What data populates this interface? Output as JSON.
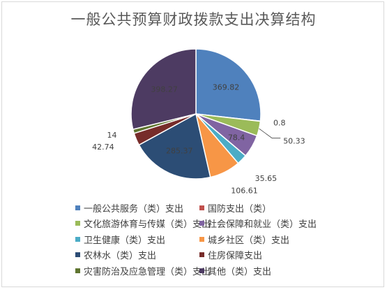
{
  "chart_data": {
    "type": "pie",
    "title": "一般公共预算财政拨款支出决算结构",
    "legend_position": "bottom",
    "slices": [
      {
        "label": "一般公共服务（类）支出",
        "value": 369.82,
        "value_text": "369.82",
        "color": "#4f81bd"
      },
      {
        "label": "国防支出（类）",
        "value": 0.8,
        "value_text": "0.8",
        "color": "#c0504d"
      },
      {
        "label": "文化旅游体育与传媒（类）支出",
        "value": 50.33,
        "value_text": "50.33",
        "color": "#9bbb59"
      },
      {
        "label": "社会保障和就业（类）支出",
        "value": 78.4,
        "value_text": "78.4",
        "color": "#8064a2"
      },
      {
        "label": "卫生健康（类）支出",
        "value": 35.65,
        "value_text": "35.65",
        "color": "#4bacc6"
      },
      {
        "label": "城乡社区（类）支出",
        "value": 106.61,
        "value_text": "106.61",
        "color": "#f79646"
      },
      {
        "label": "农林水（类）支出",
        "value": 285.37,
        "value_text": "285.37",
        "color": "#2c4d75"
      },
      {
        "label": "住房保障支出",
        "value": 42.74,
        "value_text": "42.74",
        "color": "#772c2a"
      },
      {
        "label": "灾害防治及应急管理（类）支出",
        "value": 14,
        "value_text": "14",
        "color": "#5f7530"
      },
      {
        "label": "其他（类）支出",
        "value": 398.27,
        "value_text": "398.27",
        "color": "#4d3b62"
      }
    ]
  }
}
